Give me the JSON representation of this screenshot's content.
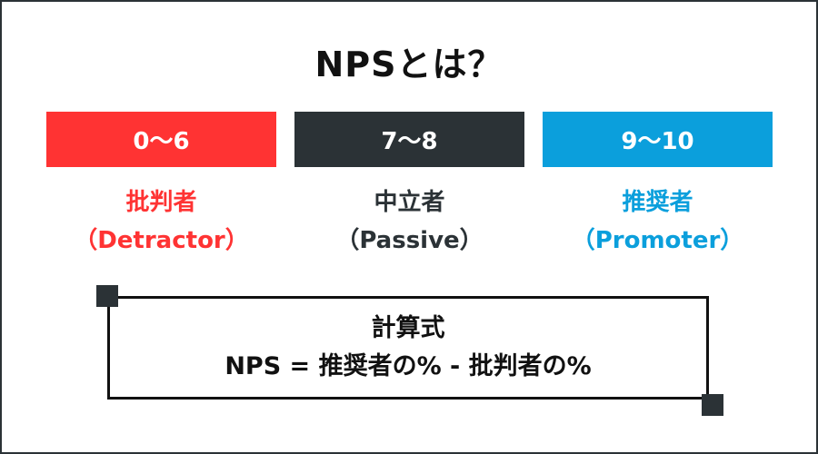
{
  "title": "NPSとは？",
  "colors": {
    "detractor": "#ff3333",
    "passive": "#2b3236",
    "promoter": "#0b9fdc",
    "text": "#111111"
  },
  "segments": [
    {
      "range": "0〜6",
      "name": "批判者",
      "english": "（Detractor）"
    },
    {
      "range": "7〜8",
      "name": "中立者",
      "english": "（Passive）"
    },
    {
      "range": "9〜10",
      "name": "推奨者",
      "english": "（Promoter）"
    }
  ],
  "formula": {
    "heading": "計算式",
    "expression": "NPS = 推奨者の% - 批判者の%"
  }
}
